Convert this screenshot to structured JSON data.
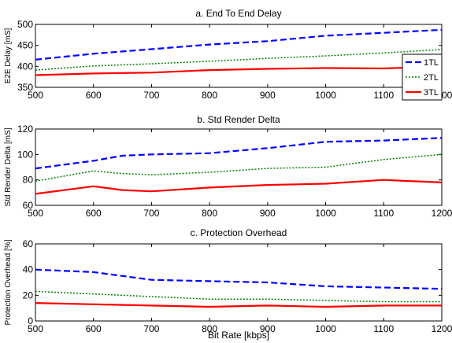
{
  "chart_data": [
    {
      "type": "line",
      "title": "a. End To End Delay",
      "xlabel": "",
      "ylabel": "E2E Delay [mS]",
      "xlim": [
        500,
        1200
      ],
      "ylim": [
        350,
        500
      ],
      "xticks": [
        "500",
        "600",
        "700",
        "800",
        "900",
        "1000",
        "1100",
        "1200"
      ],
      "yticks": [
        "350",
        "400",
        "450",
        "500"
      ],
      "x": [
        500,
        600,
        700,
        800,
        900,
        1000,
        1100,
        1200
      ],
      "legend": {
        "position": "right"
      },
      "series": [
        {
          "name": "1TL",
          "style": "dashed",
          "color": "#0000ff",
          "values": [
            416,
            430,
            441,
            452,
            460,
            473,
            480,
            487
          ]
        },
        {
          "name": "2TL",
          "style": "dotted",
          "color": "#008000",
          "values": [
            391,
            401,
            406,
            412,
            419,
            425,
            432,
            440
          ]
        },
        {
          "name": "3TL",
          "style": "solid",
          "color": "#ff0000",
          "values": [
            379,
            383,
            385,
            391,
            394,
            396,
            395,
            400
          ]
        }
      ]
    },
    {
      "type": "line",
      "title": "b. Std Render Delta",
      "xlabel": "",
      "ylabel": "Std Render Delta [mS]",
      "xlim": [
        500,
        1200
      ],
      "ylim": [
        60,
        120
      ],
      "xticks": [
        "500",
        "600",
        "700",
        "800",
        "900",
        "1000",
        "1100",
        "1200"
      ],
      "yticks": [
        "60",
        "80",
        "100",
        "120"
      ],
      "x": [
        500,
        600,
        650,
        700,
        800,
        900,
        1000,
        1100,
        1200
      ],
      "series": [
        {
          "name": "1TL",
          "style": "dashed",
          "color": "#0000ff",
          "values": [
            89,
            95,
            99,
            100,
            101,
            105,
            110,
            111,
            113
          ]
        },
        {
          "name": "2TL",
          "style": "dotted",
          "color": "#008000",
          "values": [
            79,
            87,
            85,
            84,
            86,
            89,
            90,
            96,
            100
          ]
        },
        {
          "name": "3TL",
          "style": "solid",
          "color": "#ff0000",
          "values": [
            69,
            75,
            72,
            71,
            74,
            76,
            77,
            80,
            78
          ]
        }
      ]
    },
    {
      "type": "line",
      "title": "c. Protection Overhead",
      "xlabel": "Bit Rate [kbps]",
      "ylabel": "Protection Overhead [%]",
      "xlim": [
        500,
        1200
      ],
      "ylim": [
        0,
        60
      ],
      "xticks": [
        "500",
        "600",
        "700",
        "800",
        "900",
        "1000",
        "1100",
        "1200"
      ],
      "yticks": [
        "0",
        "20",
        "40",
        "60"
      ],
      "x": [
        500,
        600,
        700,
        800,
        900,
        1000,
        1100,
        1200
      ],
      "series": [
        {
          "name": "1TL",
          "style": "dashed",
          "color": "#0000ff",
          "values": [
            40,
            38,
            32,
            31,
            30,
            27,
            26,
            25
          ]
        },
        {
          "name": "2TL",
          "style": "dotted",
          "color": "#008000",
          "values": [
            23,
            21,
            19,
            17,
            17,
            16,
            15,
            15
          ]
        },
        {
          "name": "3TL",
          "style": "solid",
          "color": "#ff0000",
          "values": [
            14,
            13,
            12,
            11,
            12,
            11,
            12,
            12
          ]
        }
      ]
    }
  ]
}
